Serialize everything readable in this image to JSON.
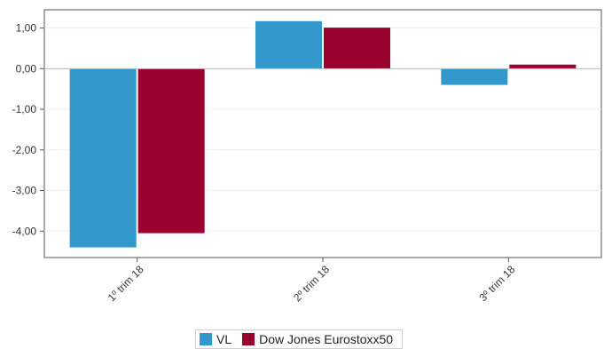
{
  "chart_data": {
    "type": "bar",
    "categories": [
      "1º trim  18",
      "2º trim  18",
      "3º trim  18"
    ],
    "series": [
      {
        "name": "VL",
        "color": "#3399cc",
        "values": [
          -4.4,
          1.17,
          -0.4
        ]
      },
      {
        "name": "Dow Jones Eurostoxx50",
        "color": "#99002e",
        "values": [
          -4.05,
          1.01,
          0.1
        ]
      }
    ],
    "yticks": [
      1.0,
      0.0,
      -1.0,
      -2.0,
      -3.0,
      -4.0
    ],
    "ytick_labels": [
      "1,00",
      "0,00",
      "-1,00",
      "-2,00",
      "-3,00",
      "-4,00"
    ],
    "ylim": [
      -4.65,
      1.45
    ],
    "grid": true,
    "legend": "bottom-center",
    "title": "",
    "xlabel": "",
    "ylabel": ""
  }
}
